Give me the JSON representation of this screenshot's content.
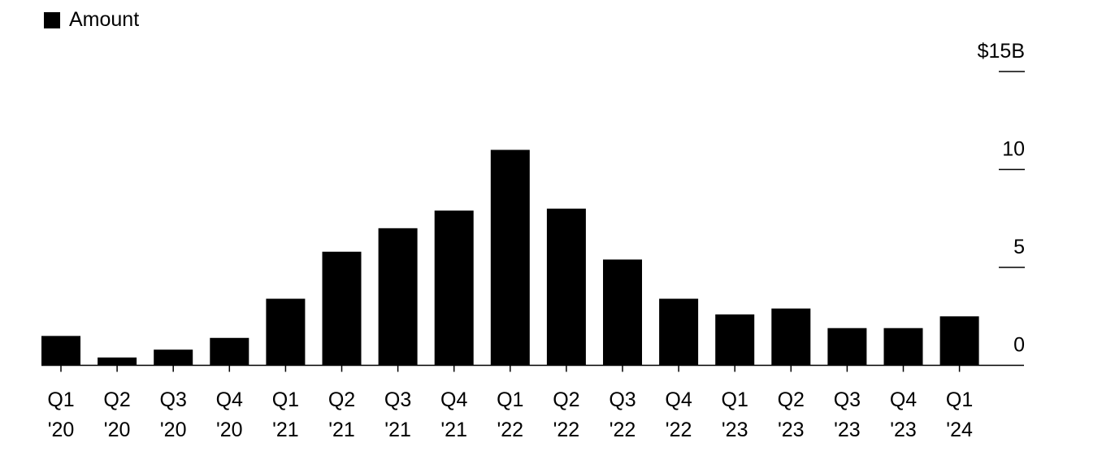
{
  "chart_data": {
    "type": "bar",
    "categories": [
      [
        "Q1",
        "'20"
      ],
      [
        "Q2",
        "'20"
      ],
      [
        "Q3",
        "'20"
      ],
      [
        "Q4",
        "'20"
      ],
      [
        "Q1",
        "'21"
      ],
      [
        "Q2",
        "'21"
      ],
      [
        "Q3",
        "'21"
      ],
      [
        "Q4",
        "'21"
      ],
      [
        "Q1",
        "'22"
      ],
      [
        "Q2",
        "'22"
      ],
      [
        "Q3",
        "'22"
      ],
      [
        "Q4",
        "'22"
      ],
      [
        "Q1",
        "'23"
      ],
      [
        "Q2",
        "'23"
      ],
      [
        "Q3",
        "'23"
      ],
      [
        "Q4",
        "'23"
      ],
      [
        "Q1",
        "'24"
      ]
    ],
    "series": [
      {
        "name": "Amount",
        "values": [
          1.5,
          0.4,
          0.8,
          1.4,
          3.4,
          5.8,
          7.0,
          7.9,
          11.0,
          8.0,
          5.4,
          3.4,
          2.6,
          2.9,
          1.9,
          1.9,
          2.5
        ],
        "color": "#000000"
      }
    ],
    "yticks": [
      {
        "value": 0,
        "label": "0"
      },
      {
        "value": 5,
        "label": "5"
      },
      {
        "value": 10,
        "label": "10"
      },
      {
        "value": 15,
        "label": "$15B"
      }
    ],
    "ylim": [
      0,
      15
    ],
    "axis_position": "right",
    "grid": false,
    "legend_position": "top-left"
  }
}
